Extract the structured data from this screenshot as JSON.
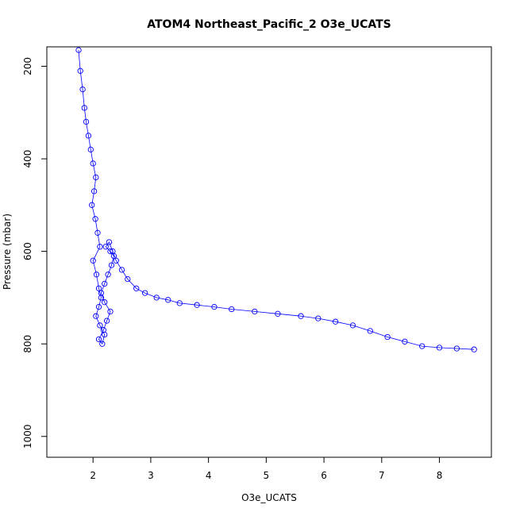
{
  "chart_data": {
    "type": "scatter",
    "title": "ATOM4 Northeast_Pacific_2 O3e_UCATS",
    "xlabel": "O3e_UCATS",
    "ylabel": "Pressure (mbar)",
    "xlim": [
      1.2,
      8.9
    ],
    "ylim": [
      1045,
      158
    ],
    "y_axis_reversed": true,
    "xticks": [
      2,
      3,
      4,
      5,
      6,
      7,
      8
    ],
    "yticks": [
      200,
      400,
      600,
      800,
      1000
    ],
    "marker": "open-circle",
    "line_connecting": true,
    "color": "#0000FF",
    "series": [
      {
        "x": [
          1.75,
          1.78,
          1.82,
          1.85,
          1.88,
          1.92,
          1.96,
          2.0,
          2.05,
          2.02,
          1.98,
          2.04,
          2.08,
          2.12,
          2.0,
          2.06,
          2.1,
          2.14,
          2.1,
          2.05,
          2.12,
          2.2,
          2.16,
          2.1,
          2.18,
          2.24,
          2.3,
          2.2,
          2.14,
          2.2,
          2.26,
          2.32,
          2.36,
          2.3,
          2.22,
          2.28,
          2.34,
          2.4,
          2.5,
          2.6,
          2.75,
          2.9,
          3.1,
          3.3,
          3.5,
          3.8,
          4.1,
          4.4,
          4.8,
          5.2,
          5.6,
          5.9,
          6.2,
          6.5,
          6.8,
          7.1,
          7.4,
          7.7,
          8.0,
          8.3,
          8.6
        ],
        "y": [
          165,
          210,
          250,
          290,
          320,
          350,
          380,
          410,
          440,
          470,
          500,
          530,
          560,
          590,
          620,
          650,
          680,
          700,
          720,
          740,
          760,
          780,
          800,
          790,
          770,
          750,
          730,
          710,
          690,
          670,
          650,
          630,
          610,
          600,
          590,
          580,
          600,
          620,
          640,
          660,
          680,
          690,
          700,
          705,
          712,
          716,
          720,
          725,
          730,
          735,
          740,
          745,
          752,
          760,
          772,
          785,
          795,
          805,
          808,
          810,
          812
        ]
      }
    ]
  }
}
